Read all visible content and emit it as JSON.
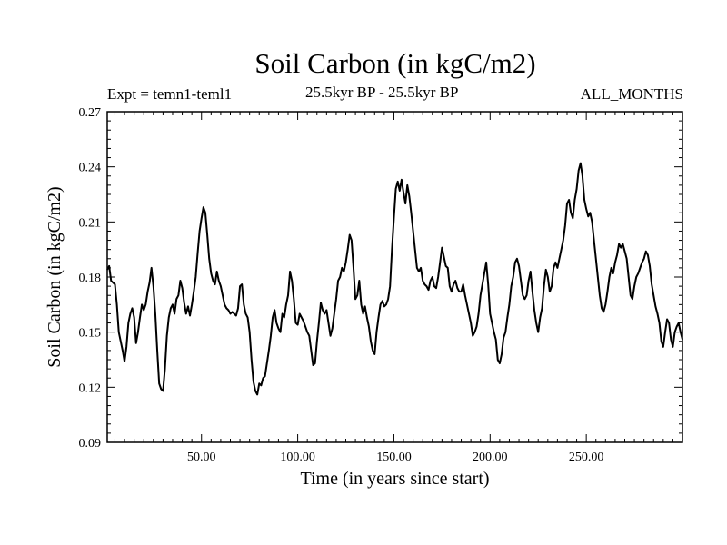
{
  "chart_data": {
    "type": "line",
    "title": "Soil Carbon (in kgC/m2)",
    "subtitle_left": "Expt = temn1-teml1",
    "subtitle_center": "25.5kyr BP - 25.5kyr BP",
    "subtitle_right": "ALL_MONTHS",
    "xlabel": "Time (in years since start)",
    "ylabel": "Soil Carbon (in kgC/m2)",
    "xlim": [
      1,
      300
    ],
    "ylim": [
      0.09,
      0.27
    ],
    "x_ticks": [
      50,
      100,
      150,
      200,
      250
    ],
    "x_tick_labels": [
      "50.00",
      "100.00",
      "150.00",
      "200.00",
      "250.00"
    ],
    "y_ticks": [
      0.09,
      0.12,
      0.15,
      0.18,
      0.21,
      0.24,
      0.27
    ],
    "y_tick_labels": [
      "0.09",
      "0.12",
      "0.15",
      "0.18",
      "0.21",
      "0.24",
      "0.27"
    ],
    "series": [
      {
        "name": "Soil Carbon",
        "points": [
          [
            1,
            0.184
          ],
          [
            2,
            0.186
          ],
          [
            3,
            0.178
          ],
          [
            5,
            0.176
          ],
          [
            6,
            0.165
          ],
          [
            7,
            0.15
          ],
          [
            9,
            0.14
          ],
          [
            10,
            0.134
          ],
          [
            11,
            0.142
          ],
          [
            12,
            0.155
          ],
          [
            13,
            0.16
          ],
          [
            14,
            0.163
          ],
          [
            15,
            0.158
          ],
          [
            16,
            0.144
          ],
          [
            17,
            0.15
          ],
          [
            18,
            0.158
          ],
          [
            19,
            0.165
          ],
          [
            20,
            0.162
          ],
          [
            21,
            0.165
          ],
          [
            22,
            0.172
          ],
          [
            23,
            0.177
          ],
          [
            24,
            0.185
          ],
          [
            25,
            0.175
          ],
          [
            26,
            0.16
          ],
          [
            27,
            0.14
          ],
          [
            28,
            0.122
          ],
          [
            29,
            0.119
          ],
          [
            30,
            0.118
          ],
          [
            31,
            0.13
          ],
          [
            32,
            0.148
          ],
          [
            33,
            0.158
          ],
          [
            34,
            0.163
          ],
          [
            35,
            0.165
          ],
          [
            36,
            0.16
          ],
          [
            37,
            0.168
          ],
          [
            38,
            0.17
          ],
          [
            39,
            0.178
          ],
          [
            40,
            0.174
          ],
          [
            41,
            0.166
          ],
          [
            42,
            0.16
          ],
          [
            43,
            0.164
          ],
          [
            44,
            0.159
          ],
          [
            45,
            0.165
          ],
          [
            46,
            0.172
          ],
          [
            47,
            0.18
          ],
          [
            48,
            0.193
          ],
          [
            49,
            0.205
          ],
          [
            50,
            0.212
          ],
          [
            51,
            0.218
          ],
          [
            52,
            0.215
          ],
          [
            53,
            0.203
          ],
          [
            54,
            0.19
          ],
          [
            55,
            0.182
          ],
          [
            56,
            0.178
          ],
          [
            57,
            0.176
          ],
          [
            58,
            0.183
          ],
          [
            59,
            0.178
          ],
          [
            60,
            0.175
          ],
          [
            61,
            0.17
          ],
          [
            62,
            0.165
          ],
          [
            63,
            0.163
          ],
          [
            64,
            0.162
          ],
          [
            65,
            0.16
          ],
          [
            66,
            0.161
          ],
          [
            67,
            0.16
          ],
          [
            68,
            0.159
          ],
          [
            69,
            0.163
          ],
          [
            70,
            0.175
          ],
          [
            71,
            0.176
          ],
          [
            72,
            0.165
          ],
          [
            73,
            0.16
          ],
          [
            74,
            0.158
          ],
          [
            75,
            0.15
          ],
          [
            76,
            0.135
          ],
          [
            77,
            0.123
          ],
          [
            78,
            0.118
          ],
          [
            79,
            0.116
          ],
          [
            80,
            0.122
          ],
          [
            81,
            0.121
          ],
          [
            82,
            0.125
          ],
          [
            83,
            0.126
          ],
          [
            84,
            0.133
          ],
          [
            85,
            0.14
          ],
          [
            86,
            0.148
          ],
          [
            87,
            0.158
          ],
          [
            88,
            0.162
          ],
          [
            89,
            0.155
          ],
          [
            90,
            0.152
          ],
          [
            91,
            0.15
          ],
          [
            92,
            0.16
          ],
          [
            93,
            0.158
          ],
          [
            94,
            0.165
          ],
          [
            95,
            0.17
          ],
          [
            96,
            0.183
          ],
          [
            97,
            0.178
          ],
          [
            98,
            0.168
          ],
          [
            99,
            0.155
          ],
          [
            100,
            0.154
          ],
          [
            101,
            0.16
          ],
          [
            102,
            0.158
          ],
          [
            103,
            0.156
          ],
          [
            104,
            0.153
          ],
          [
            105,
            0.15
          ],
          [
            106,
            0.148
          ],
          [
            107,
            0.14
          ],
          [
            108,
            0.132
          ],
          [
            109,
            0.133
          ],
          [
            110,
            0.145
          ],
          [
            111,
            0.155
          ],
          [
            112,
            0.166
          ],
          [
            113,
            0.162
          ],
          [
            114,
            0.16
          ],
          [
            115,
            0.162
          ],
          [
            116,
            0.155
          ],
          [
            117,
            0.148
          ],
          [
            118,
            0.152
          ],
          [
            119,
            0.16
          ],
          [
            120,
            0.168
          ],
          [
            121,
            0.178
          ],
          [
            122,
            0.18
          ],
          [
            123,
            0.185
          ],
          [
            124,
            0.183
          ],
          [
            125,
            0.188
          ],
          [
            126,
            0.195
          ],
          [
            127,
            0.203
          ],
          [
            128,
            0.2
          ],
          [
            129,
            0.185
          ],
          [
            130,
            0.168
          ],
          [
            131,
            0.17
          ],
          [
            132,
            0.178
          ],
          [
            133,
            0.165
          ],
          [
            134,
            0.16
          ],
          [
            135,
            0.164
          ],
          [
            136,
            0.158
          ],
          [
            137,
            0.153
          ],
          [
            138,
            0.145
          ],
          [
            139,
            0.14
          ],
          [
            140,
            0.138
          ],
          [
            141,
            0.15
          ],
          [
            142,
            0.158
          ],
          [
            143,
            0.165
          ],
          [
            144,
            0.167
          ],
          [
            145,
            0.164
          ],
          [
            146,
            0.165
          ],
          [
            147,
            0.168
          ],
          [
            148,
            0.175
          ],
          [
            149,
            0.195
          ],
          [
            150,
            0.212
          ],
          [
            151,
            0.228
          ],
          [
            152,
            0.232
          ],
          [
            153,
            0.227
          ],
          [
            154,
            0.233
          ],
          [
            155,
            0.226
          ],
          [
            156,
            0.22
          ],
          [
            157,
            0.23
          ],
          [
            158,
            0.224
          ],
          [
            159,
            0.215
          ],
          [
            160,
            0.205
          ],
          [
            161,
            0.195
          ],
          [
            162,
            0.185
          ],
          [
            163,
            0.183
          ],
          [
            164,
            0.185
          ],
          [
            165,
            0.178
          ],
          [
            166,
            0.176
          ],
          [
            167,
            0.175
          ],
          [
            168,
            0.173
          ],
          [
            169,
            0.178
          ],
          [
            170,
            0.18
          ],
          [
            171,
            0.175
          ],
          [
            172,
            0.174
          ],
          [
            173,
            0.18
          ],
          [
            174,
            0.188
          ],
          [
            175,
            0.196
          ],
          [
            176,
            0.191
          ],
          [
            177,
            0.186
          ],
          [
            178,
            0.185
          ],
          [
            179,
            0.175
          ],
          [
            180,
            0.172
          ],
          [
            181,
            0.176
          ],
          [
            182,
            0.178
          ],
          [
            183,
            0.174
          ],
          [
            184,
            0.172
          ],
          [
            185,
            0.172
          ],
          [
            186,
            0.176
          ],
          [
            187,
            0.17
          ],
          [
            188,
            0.165
          ],
          [
            189,
            0.16
          ],
          [
            190,
            0.155
          ],
          [
            191,
            0.148
          ],
          [
            192,
            0.15
          ],
          [
            193,
            0.153
          ],
          [
            194,
            0.16
          ],
          [
            195,
            0.17
          ],
          [
            196,
            0.176
          ],
          [
            197,
            0.182
          ],
          [
            198,
            0.188
          ],
          [
            199,
            0.176
          ],
          [
            200,
            0.16
          ],
          [
            201,
            0.155
          ],
          [
            202,
            0.15
          ],
          [
            203,
            0.146
          ],
          [
            204,
            0.135
          ],
          [
            205,
            0.133
          ],
          [
            206,
            0.138
          ],
          [
            207,
            0.147
          ],
          [
            208,
            0.15
          ],
          [
            209,
            0.158
          ],
          [
            210,
            0.165
          ],
          [
            211,
            0.175
          ],
          [
            212,
            0.18
          ],
          [
            213,
            0.188
          ],
          [
            214,
            0.19
          ],
          [
            215,
            0.186
          ],
          [
            216,
            0.178
          ],
          [
            217,
            0.17
          ],
          [
            218,
            0.168
          ],
          [
            219,
            0.17
          ],
          [
            220,
            0.178
          ],
          [
            221,
            0.183
          ],
          [
            222,
            0.172
          ],
          [
            223,
            0.162
          ],
          [
            224,
            0.155
          ],
          [
            225,
            0.15
          ],
          [
            226,
            0.158
          ],
          [
            227,
            0.163
          ],
          [
            228,
            0.175
          ],
          [
            229,
            0.184
          ],
          [
            230,
            0.18
          ],
          [
            231,
            0.172
          ],
          [
            232,
            0.175
          ],
          [
            233,
            0.185
          ],
          [
            234,
            0.188
          ],
          [
            235,
            0.185
          ],
          [
            236,
            0.19
          ],
          [
            237,
            0.195
          ],
          [
            238,
            0.2
          ],
          [
            239,
            0.208
          ],
          [
            240,
            0.22
          ],
          [
            241,
            0.222
          ],
          [
            242,
            0.215
          ],
          [
            243,
            0.212
          ],
          [
            244,
            0.222
          ],
          [
            245,
            0.228
          ],
          [
            246,
            0.238
          ],
          [
            247,
            0.242
          ],
          [
            248,
            0.235
          ],
          [
            249,
            0.222
          ],
          [
            250,
            0.217
          ],
          [
            251,
            0.213
          ],
          [
            252,
            0.215
          ],
          [
            253,
            0.21
          ],
          [
            254,
            0.2
          ],
          [
            255,
            0.19
          ],
          [
            256,
            0.18
          ],
          [
            257,
            0.17
          ],
          [
            258,
            0.163
          ],
          [
            259,
            0.161
          ],
          [
            260,
            0.165
          ],
          [
            261,
            0.172
          ],
          [
            262,
            0.18
          ],
          [
            263,
            0.185
          ],
          [
            264,
            0.182
          ],
          [
            265,
            0.188
          ],
          [
            266,
            0.192
          ],
          [
            267,
            0.198
          ],
          [
            268,
            0.196
          ],
          [
            269,
            0.198
          ],
          [
            270,
            0.194
          ],
          [
            271,
            0.19
          ],
          [
            272,
            0.18
          ],
          [
            273,
            0.17
          ],
          [
            274,
            0.168
          ],
          [
            275,
            0.175
          ],
          [
            276,
            0.18
          ],
          [
            277,
            0.182
          ],
          [
            278,
            0.185
          ],
          [
            279,
            0.188
          ],
          [
            280,
            0.19
          ],
          [
            281,
            0.194
          ],
          [
            282,
            0.192
          ],
          [
            283,
            0.186
          ],
          [
            284,
            0.176
          ],
          [
            285,
            0.17
          ],
          [
            286,
            0.164
          ],
          [
            287,
            0.16
          ],
          [
            288,
            0.155
          ],
          [
            289,
            0.145
          ],
          [
            290,
            0.142
          ],
          [
            291,
            0.15
          ],
          [
            292,
            0.157
          ],
          [
            293,
            0.155
          ],
          [
            294,
            0.146
          ],
          [
            295,
            0.142
          ],
          [
            296,
            0.15
          ],
          [
            297,
            0.153
          ],
          [
            298,
            0.155
          ],
          [
            299,
            0.15
          ],
          [
            300,
            0.146
          ]
        ]
      }
    ]
  }
}
